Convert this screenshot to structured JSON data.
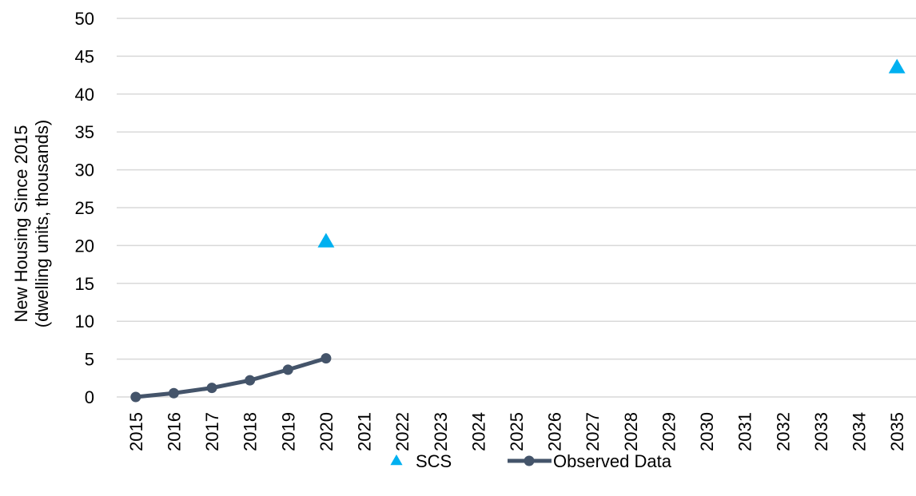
{
  "chart_data": {
    "type": "line",
    "categories": [
      "2015",
      "2016",
      "2017",
      "2018",
      "2019",
      "2020",
      "2021",
      "2022",
      "2023",
      "2024",
      "2025",
      "2026",
      "2027",
      "2028",
      "2029",
      "2030",
      "2031",
      "2032",
      "2033",
      "2034",
      "2035"
    ],
    "ylabel_line1": "New Housing Since 2015",
    "ylabel_line2": "(dwelling units, thousands)",
    "ylim": [
      0,
      50
    ],
    "yticks": [
      0,
      5,
      10,
      15,
      20,
      25,
      30,
      35,
      40,
      45,
      50
    ],
    "grid": true,
    "legend_position": "bottom",
    "series": [
      {
        "name": "SCS",
        "kind": "marker",
        "marker": "triangle",
        "color": "#00B0F0",
        "points": [
          {
            "x": "2020",
            "y": 20.5
          },
          {
            "x": "2035",
            "y": 43.5
          }
        ]
      },
      {
        "name": "Observed Data",
        "kind": "line",
        "marker": "circle",
        "color": "#44546A",
        "points": [
          {
            "x": "2015",
            "y": 0
          },
          {
            "x": "2016",
            "y": 0.5
          },
          {
            "x": "2017",
            "y": 1.2
          },
          {
            "x": "2018",
            "y": 2.2
          },
          {
            "x": "2019",
            "y": 3.6
          },
          {
            "x": "2020",
            "y": 5.1
          }
        ]
      }
    ],
    "colors": {
      "gridline": "#D9D9D9",
      "text": "#000000"
    }
  }
}
